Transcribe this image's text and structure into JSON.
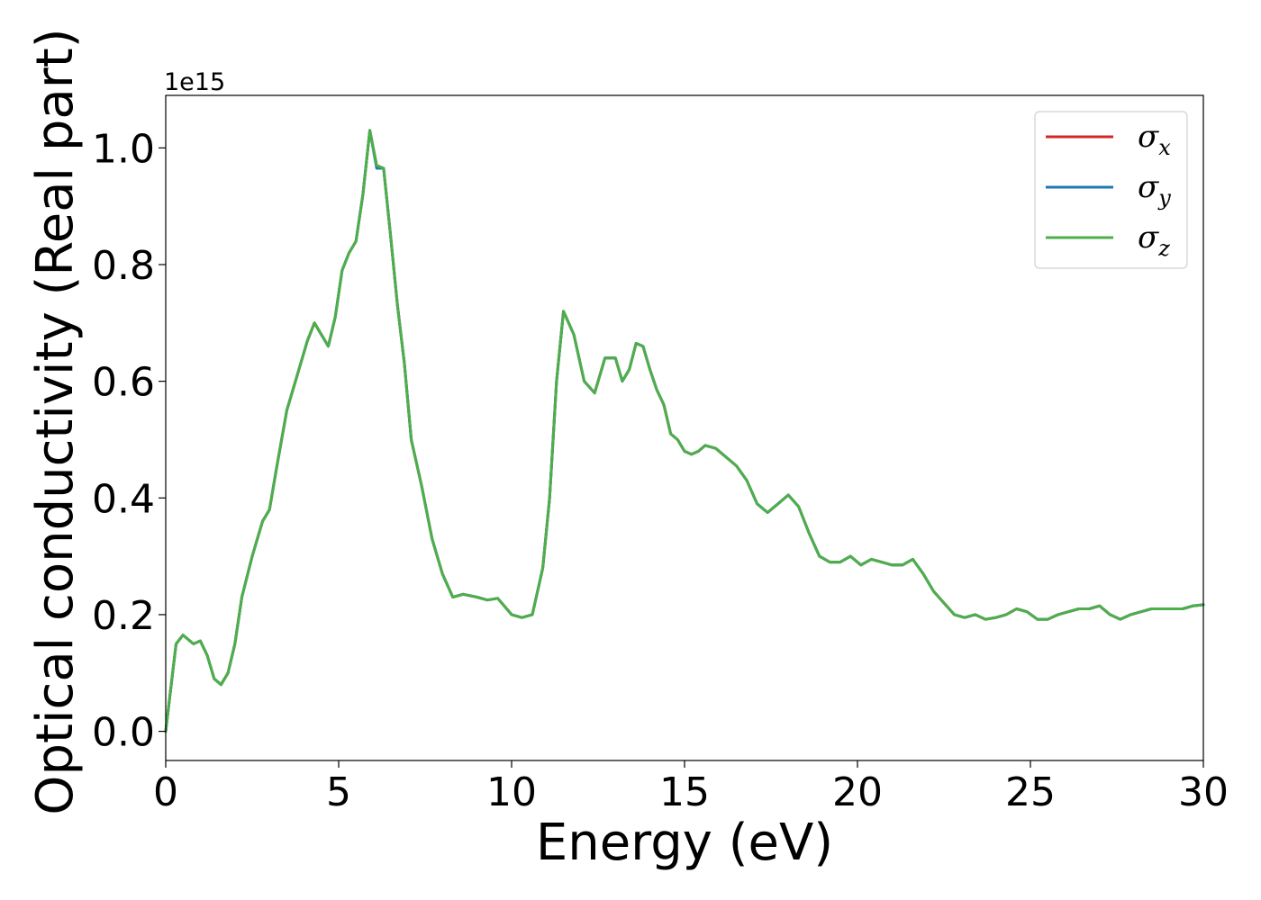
{
  "chart_data": {
    "type": "line",
    "title": "",
    "xlabel": "Energy (eV)",
    "ylabel": "Optical conductivity (Real part)",
    "y_offset_label": "1e15",
    "y_scale": 1000000000000000.0,
    "xlim": [
      0,
      30
    ],
    "ylim": [
      -0.05,
      1.09
    ],
    "xticks": [
      0,
      5,
      10,
      15,
      20,
      25,
      30
    ],
    "xtick_labels": [
      "0",
      "5",
      "10",
      "15",
      "20",
      "25",
      "30"
    ],
    "yticks": [
      0.0,
      0.2,
      0.4,
      0.6,
      0.8,
      1.0
    ],
    "ytick_labels": [
      "0.0",
      "0.2",
      "0.4",
      "0.6",
      "0.8",
      "1.0"
    ],
    "grid": false,
    "legend_position": "upper right",
    "legend": [
      {
        "symbol": "σ",
        "sub": "x",
        "color": "#d62728"
      },
      {
        "symbol": "σ",
        "sub": "y",
        "color": "#1f77b4"
      },
      {
        "symbol": "σ",
        "sub": "z",
        "color": "#4daf4a"
      }
    ],
    "x": [
      0,
      0.1,
      0.3,
      0.5,
      0.8,
      1.0,
      1.2,
      1.4,
      1.6,
      1.8,
      2.0,
      2.2,
      2.5,
      2.8,
      3.0,
      3.2,
      3.5,
      3.8,
      4.1,
      4.3,
      4.5,
      4.7,
      4.9,
      5.1,
      5.3,
      5.5,
      5.7,
      5.9,
      6.1,
      6.3,
      6.5,
      6.7,
      6.9,
      7.1,
      7.4,
      7.7,
      8.0,
      8.3,
      8.6,
      9.0,
      9.3,
      9.6,
      10.0,
      10.3,
      10.6,
      10.9,
      11.1,
      11.3,
      11.5,
      11.8,
      12.1,
      12.4,
      12.7,
      13.0,
      13.2,
      13.4,
      13.6,
      13.8,
      14.0,
      14.2,
      14.4,
      14.6,
      14.8,
      15.0,
      15.2,
      15.4,
      15.6,
      15.9,
      16.2,
      16.5,
      16.8,
      17.1,
      17.4,
      17.7,
      18.0,
      18.3,
      18.6,
      18.9,
      19.2,
      19.5,
      19.8,
      20.1,
      20.4,
      20.7,
      21.0,
      21.3,
      21.6,
      21.9,
      22.2,
      22.5,
      22.8,
      23.1,
      23.4,
      23.7,
      24.0,
      24.3,
      24.6,
      24.9,
      25.2,
      25.5,
      25.8,
      26.1,
      26.4,
      26.7,
      27.0,
      27.3,
      27.6,
      27.9,
      28.2,
      28.5,
      28.8,
      29.1,
      29.4,
      29.7,
      30.0
    ],
    "series": [
      {
        "name": "σx",
        "color": "#d62728",
        "values": [
          0.0,
          0.05,
          0.15,
          0.165,
          0.15,
          0.155,
          0.13,
          0.09,
          0.08,
          0.1,
          0.15,
          0.23,
          0.3,
          0.36,
          0.38,
          0.45,
          0.55,
          0.61,
          0.67,
          0.7,
          0.68,
          0.66,
          0.71,
          0.79,
          0.82,
          0.84,
          0.92,
          1.03,
          0.97,
          0.965,
          0.85,
          0.73,
          0.63,
          0.5,
          0.42,
          0.33,
          0.27,
          0.23,
          0.235,
          0.23,
          0.225,
          0.228,
          0.2,
          0.195,
          0.2,
          0.28,
          0.4,
          0.6,
          0.72,
          0.68,
          0.6,
          0.58,
          0.64,
          0.64,
          0.6,
          0.62,
          0.665,
          0.66,
          0.62,
          0.585,
          0.56,
          0.51,
          0.5,
          0.48,
          0.475,
          0.48,
          0.49,
          0.485,
          0.47,
          0.455,
          0.43,
          0.39,
          0.375,
          0.39,
          0.405,
          0.385,
          0.34,
          0.3,
          0.29,
          0.29,
          0.3,
          0.285,
          0.295,
          0.29,
          0.285,
          0.285,
          0.295,
          0.27,
          0.24,
          0.22,
          0.2,
          0.195,
          0.2,
          0.192,
          0.195,
          0.2,
          0.21,
          0.205,
          0.192,
          0.192,
          0.2,
          0.205,
          0.21,
          0.21,
          0.215,
          0.2,
          0.192,
          0.2,
          0.205,
          0.21,
          0.21,
          0.21,
          0.21,
          0.215,
          0.217
        ]
      },
      {
        "name": "σy",
        "color": "#1f77b4",
        "values": [
          0.0,
          0.05,
          0.15,
          0.165,
          0.15,
          0.155,
          0.13,
          0.09,
          0.08,
          0.1,
          0.15,
          0.23,
          0.3,
          0.36,
          0.38,
          0.45,
          0.55,
          0.61,
          0.67,
          0.7,
          0.68,
          0.66,
          0.71,
          0.79,
          0.82,
          0.84,
          0.92,
          1.03,
          0.965,
          0.965,
          0.85,
          0.73,
          0.63,
          0.5,
          0.42,
          0.33,
          0.27,
          0.23,
          0.235,
          0.23,
          0.225,
          0.228,
          0.2,
          0.195,
          0.2,
          0.28,
          0.4,
          0.6,
          0.72,
          0.68,
          0.6,
          0.58,
          0.64,
          0.64,
          0.6,
          0.62,
          0.665,
          0.66,
          0.62,
          0.585,
          0.56,
          0.51,
          0.5,
          0.48,
          0.475,
          0.48,
          0.49,
          0.485,
          0.47,
          0.455,
          0.43,
          0.39,
          0.375,
          0.39,
          0.405,
          0.385,
          0.34,
          0.3,
          0.29,
          0.29,
          0.3,
          0.285,
          0.295,
          0.29,
          0.285,
          0.285,
          0.295,
          0.27,
          0.24,
          0.22,
          0.2,
          0.195,
          0.2,
          0.192,
          0.195,
          0.2,
          0.21,
          0.205,
          0.192,
          0.192,
          0.2,
          0.205,
          0.21,
          0.21,
          0.215,
          0.2,
          0.192,
          0.2,
          0.205,
          0.21,
          0.21,
          0.21,
          0.21,
          0.215,
          0.217
        ]
      },
      {
        "name": "σz",
        "color": "#4daf4a",
        "values": [
          0.0,
          0.05,
          0.15,
          0.165,
          0.15,
          0.155,
          0.13,
          0.09,
          0.08,
          0.1,
          0.15,
          0.23,
          0.3,
          0.36,
          0.38,
          0.45,
          0.55,
          0.61,
          0.67,
          0.7,
          0.68,
          0.66,
          0.71,
          0.79,
          0.82,
          0.84,
          0.92,
          1.03,
          0.97,
          0.965,
          0.85,
          0.73,
          0.63,
          0.5,
          0.42,
          0.33,
          0.27,
          0.23,
          0.235,
          0.23,
          0.225,
          0.228,
          0.2,
          0.195,
          0.2,
          0.28,
          0.4,
          0.6,
          0.72,
          0.68,
          0.6,
          0.58,
          0.64,
          0.64,
          0.6,
          0.62,
          0.665,
          0.66,
          0.62,
          0.585,
          0.56,
          0.51,
          0.5,
          0.48,
          0.475,
          0.48,
          0.49,
          0.485,
          0.47,
          0.455,
          0.43,
          0.39,
          0.375,
          0.39,
          0.405,
          0.385,
          0.34,
          0.3,
          0.29,
          0.29,
          0.3,
          0.285,
          0.295,
          0.29,
          0.285,
          0.285,
          0.295,
          0.27,
          0.24,
          0.22,
          0.2,
          0.195,
          0.2,
          0.192,
          0.195,
          0.2,
          0.21,
          0.205,
          0.192,
          0.192,
          0.2,
          0.205,
          0.21,
          0.21,
          0.215,
          0.2,
          0.192,
          0.2,
          0.205,
          0.21,
          0.21,
          0.21,
          0.21,
          0.215,
          0.217
        ]
      }
    ]
  }
}
